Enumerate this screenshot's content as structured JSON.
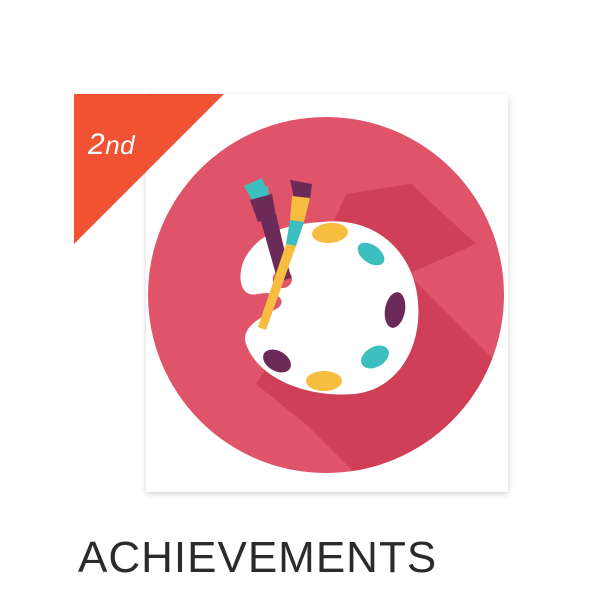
{
  "achievement": {
    "rank_number": "2",
    "rank_suffix": "nd",
    "icon": "paint-palette-icon",
    "colors": {
      "ribbon": "#f05233",
      "circle": "#e05469",
      "circle_shadow": "#c8384f",
      "palette": "#ffffff",
      "teal": "#3dbfbf",
      "purple": "#6b2a57",
      "yellow": "#f7bd40"
    }
  },
  "section": {
    "title": "ACHIEVEMENTS"
  }
}
